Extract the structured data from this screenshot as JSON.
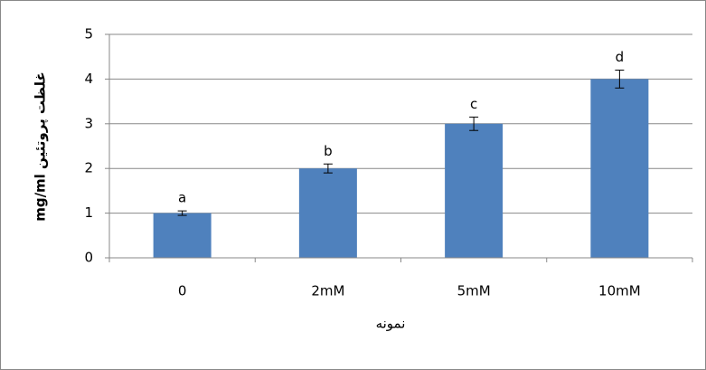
{
  "chart_data": {
    "type": "bar",
    "categories": [
      "0",
      "2mM",
      "5mM",
      "10mM"
    ],
    "values": [
      1,
      2,
      3,
      4
    ],
    "errors": [
      0.05,
      0.1,
      0.15,
      0.2
    ],
    "annotations": [
      "a",
      "b",
      "c",
      "d"
    ],
    "color": "#4f81bd",
    "ylim": [
      0,
      5
    ],
    "yticks": [
      0,
      1,
      2,
      3,
      4,
      5
    ],
    "grid": true,
    "x_label": "نمونه",
    "y_label": "mg/ml غلظت پروتئین"
  }
}
